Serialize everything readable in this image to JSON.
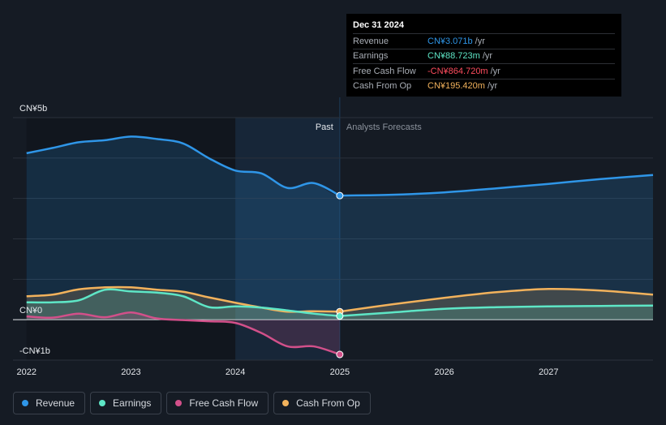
{
  "tooltip": {
    "date": "Dec 31 2024",
    "rows": [
      {
        "label": "Revenue",
        "value": "CN¥3.071b",
        "unit": "/yr",
        "color": "#2f96e8"
      },
      {
        "label": "Earnings",
        "value": "CN¥88.723m",
        "unit": "/yr",
        "color": "#5ee6c6"
      },
      {
        "label": "Free Cash Flow",
        "value": "-CN¥864.720m",
        "unit": "/yr",
        "color": "#ff4d5e"
      },
      {
        "label": "Cash From Op",
        "value": "CN¥195.420m",
        "unit": "/yr",
        "color": "#f2b25c"
      }
    ]
  },
  "legend": [
    {
      "label": "Revenue",
      "color": "#2f96e8"
    },
    {
      "label": "Earnings",
      "color": "#5ee6c6"
    },
    {
      "label": "Free Cash Flow",
      "color": "#d2508a"
    },
    {
      "label": "Cash From Op",
      "color": "#f2b25c"
    }
  ],
  "chart_data": {
    "type": "line",
    "title": "",
    "xlabel": "",
    "ylabel": "",
    "ylim": [
      -1,
      5
    ],
    "y_tick_labels": [
      {
        "value": 5,
        "label": "CN¥5b"
      },
      {
        "value": 0,
        "label": "CN¥0"
      },
      {
        "value": -1,
        "label": "-CN¥1b"
      }
    ],
    "gridlines_at": [
      5,
      4,
      3,
      2,
      1,
      0,
      -1
    ],
    "x_ticks": [
      2022,
      2023,
      2024,
      2025,
      2026,
      2027
    ],
    "xlim": [
      2021.87,
      2028.0
    ],
    "past_label": "Past",
    "forecast_label": "Analysts Forecasts",
    "past_end": 2025.0,
    "highlight_start": 2024.0,
    "series": [
      {
        "name": "Revenue",
        "color": "#2f96e8",
        "fill": true,
        "points": [
          [
            2022.0,
            4.12
          ],
          [
            2022.25,
            4.25
          ],
          [
            2022.5,
            4.39
          ],
          [
            2022.75,
            4.44
          ],
          [
            2023.0,
            4.53
          ],
          [
            2023.25,
            4.47
          ],
          [
            2023.5,
            4.36
          ],
          [
            2023.75,
            3.99
          ],
          [
            2024.0,
            3.69
          ],
          [
            2024.25,
            3.62
          ],
          [
            2024.5,
            3.26
          ],
          [
            2024.75,
            3.38
          ],
          [
            2025.0,
            3.07
          ]
        ],
        "forecast": [
          [
            2025.0,
            3.07
          ],
          [
            2025.5,
            3.09
          ],
          [
            2026.0,
            3.15
          ],
          [
            2026.5,
            3.25
          ],
          [
            2027.0,
            3.36
          ],
          [
            2027.5,
            3.48
          ],
          [
            2028.0,
            3.58
          ]
        ],
        "end_marker": true
      },
      {
        "name": "Cash From Op",
        "color": "#f2b25c",
        "fill": true,
        "points": [
          [
            2022.0,
            0.58
          ],
          [
            2022.25,
            0.62
          ],
          [
            2022.5,
            0.75
          ],
          [
            2022.75,
            0.8
          ],
          [
            2023.0,
            0.8
          ],
          [
            2023.25,
            0.74
          ],
          [
            2023.5,
            0.69
          ],
          [
            2023.75,
            0.55
          ],
          [
            2024.0,
            0.42
          ],
          [
            2024.25,
            0.3
          ],
          [
            2024.5,
            0.2
          ],
          [
            2024.75,
            0.21
          ],
          [
            2025.0,
            0.2
          ]
        ],
        "forecast": [
          [
            2025.0,
            0.2
          ],
          [
            2025.5,
            0.38
          ],
          [
            2026.0,
            0.54
          ],
          [
            2026.5,
            0.68
          ],
          [
            2027.0,
            0.76
          ],
          [
            2027.5,
            0.72
          ],
          [
            2028.0,
            0.62
          ]
        ],
        "end_marker": true
      },
      {
        "name": "Earnings",
        "color": "#5ee6c6",
        "fill": true,
        "points": [
          [
            2022.0,
            0.43
          ],
          [
            2022.25,
            0.43
          ],
          [
            2022.5,
            0.48
          ],
          [
            2022.75,
            0.74
          ],
          [
            2023.0,
            0.7
          ],
          [
            2023.25,
            0.67
          ],
          [
            2023.5,
            0.58
          ],
          [
            2023.75,
            0.31
          ],
          [
            2024.0,
            0.33
          ],
          [
            2024.25,
            0.3
          ],
          [
            2024.5,
            0.23
          ],
          [
            2024.75,
            0.15
          ],
          [
            2025.0,
            0.09
          ]
        ],
        "forecast": [
          [
            2025.0,
            0.09
          ],
          [
            2025.5,
            0.18
          ],
          [
            2026.0,
            0.27
          ],
          [
            2026.5,
            0.31
          ],
          [
            2027.0,
            0.33
          ],
          [
            2027.5,
            0.34
          ],
          [
            2028.0,
            0.35
          ]
        ],
        "end_marker": true
      },
      {
        "name": "Free Cash Flow",
        "color": "#d2508a",
        "fill": true,
        "points": [
          [
            2022.0,
            0.08
          ],
          [
            2022.25,
            0.05
          ],
          [
            2022.5,
            0.15
          ],
          [
            2022.75,
            0.06
          ],
          [
            2023.0,
            0.18
          ],
          [
            2023.25,
            0.03
          ],
          [
            2023.5,
            -0.01
          ],
          [
            2023.75,
            -0.04
          ],
          [
            2024.0,
            -0.08
          ],
          [
            2024.25,
            -0.33
          ],
          [
            2024.5,
            -0.66
          ],
          [
            2024.75,
            -0.66
          ],
          [
            2025.0,
            -0.86
          ]
        ],
        "forecast": [],
        "end_marker": true
      }
    ]
  }
}
